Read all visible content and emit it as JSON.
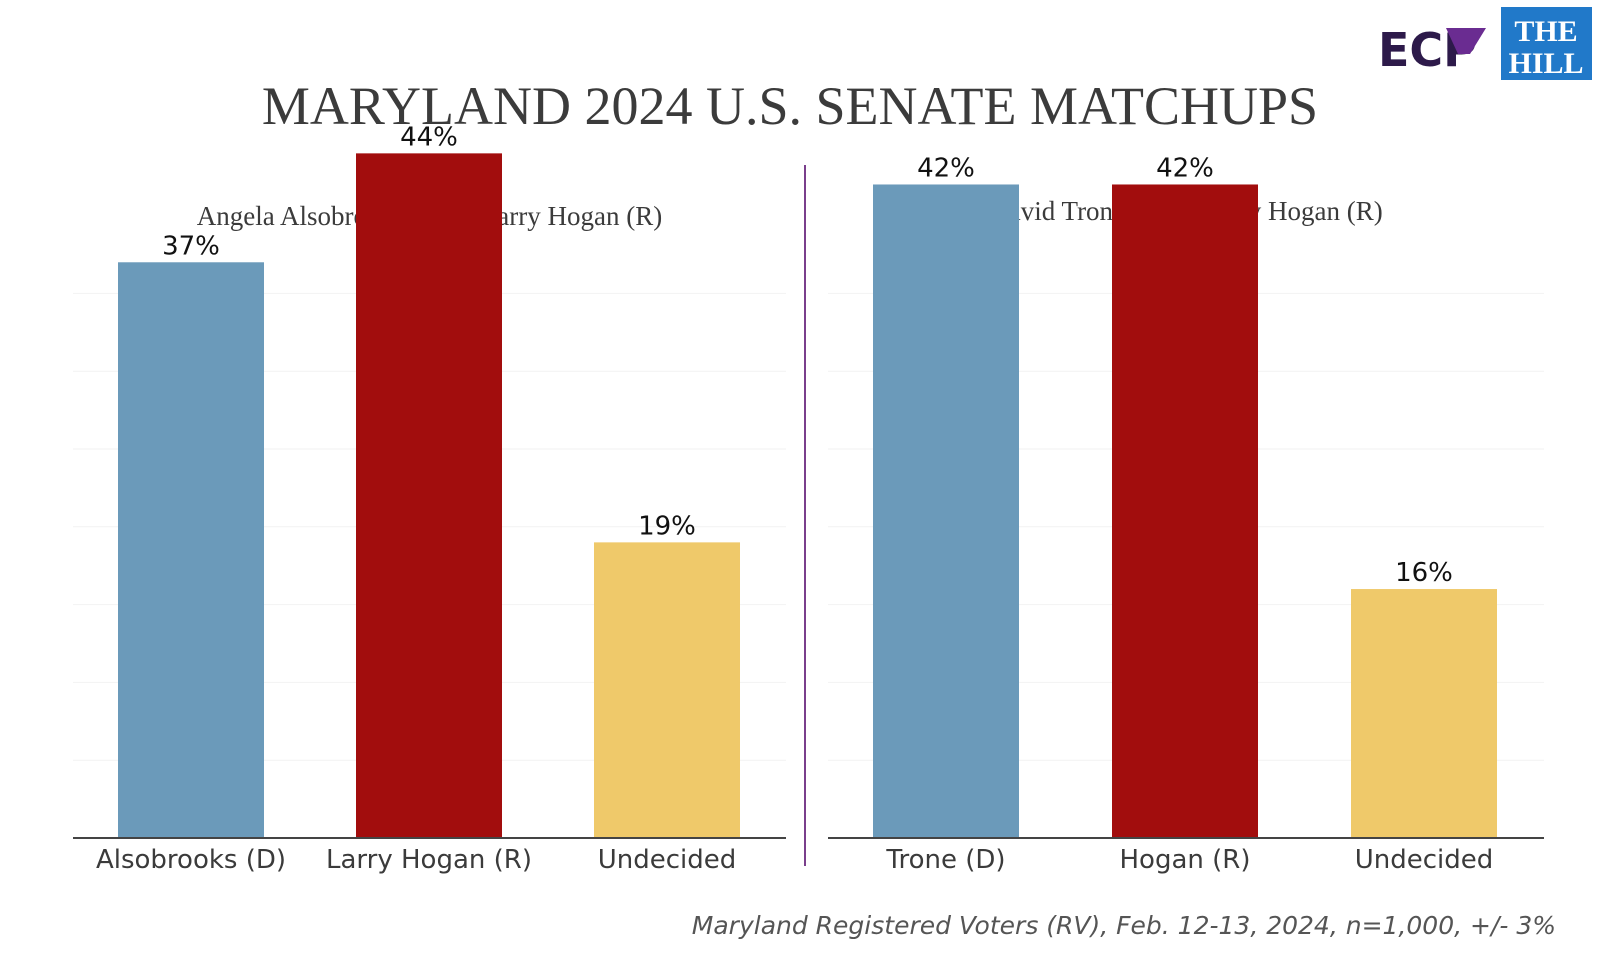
{
  "title": "MARYLAND 2024 U.S. SENATE MATCHUPS",
  "logos": {
    "ecp": "ECP",
    "hill_line1": "THE",
    "hill_line2": "HILL"
  },
  "footnote": "Maryland Registered Voters (RV), Feb. 12-13, 2024, n=1,000, +/- 3%",
  "colors": {
    "democrat": "#6b9aba",
    "republican": "#a20d0d",
    "undecided": "#efc96a",
    "divider": "#7a3f8c",
    "ecp_dark": "#2d1a4a",
    "ecp_purple": "#6a2c91",
    "hill_blue": "#2179c9"
  },
  "chart_data": [
    {
      "type": "bar",
      "title": "Angela Alsobrooks (D) v. Larry Hogan (R)",
      "categories": [
        "Alsobrooks (D)",
        "Larry Hogan (R)",
        "Undecided"
      ],
      "values": [
        37,
        44,
        19
      ],
      "value_labels": [
        "37%",
        "44%",
        "19%"
      ],
      "ylim": [
        0,
        50
      ],
      "grid": true
    },
    {
      "type": "bar",
      "title": "David Trone (D) v. Larry Hogan (R)",
      "categories": [
        "Trone (D)",
        "Hogan (R)",
        "Undecided"
      ],
      "values": [
        42,
        42,
        16
      ],
      "value_labels": [
        "42%",
        "42%",
        "16%"
      ],
      "ylim": [
        0,
        50
      ],
      "grid": true
    }
  ]
}
